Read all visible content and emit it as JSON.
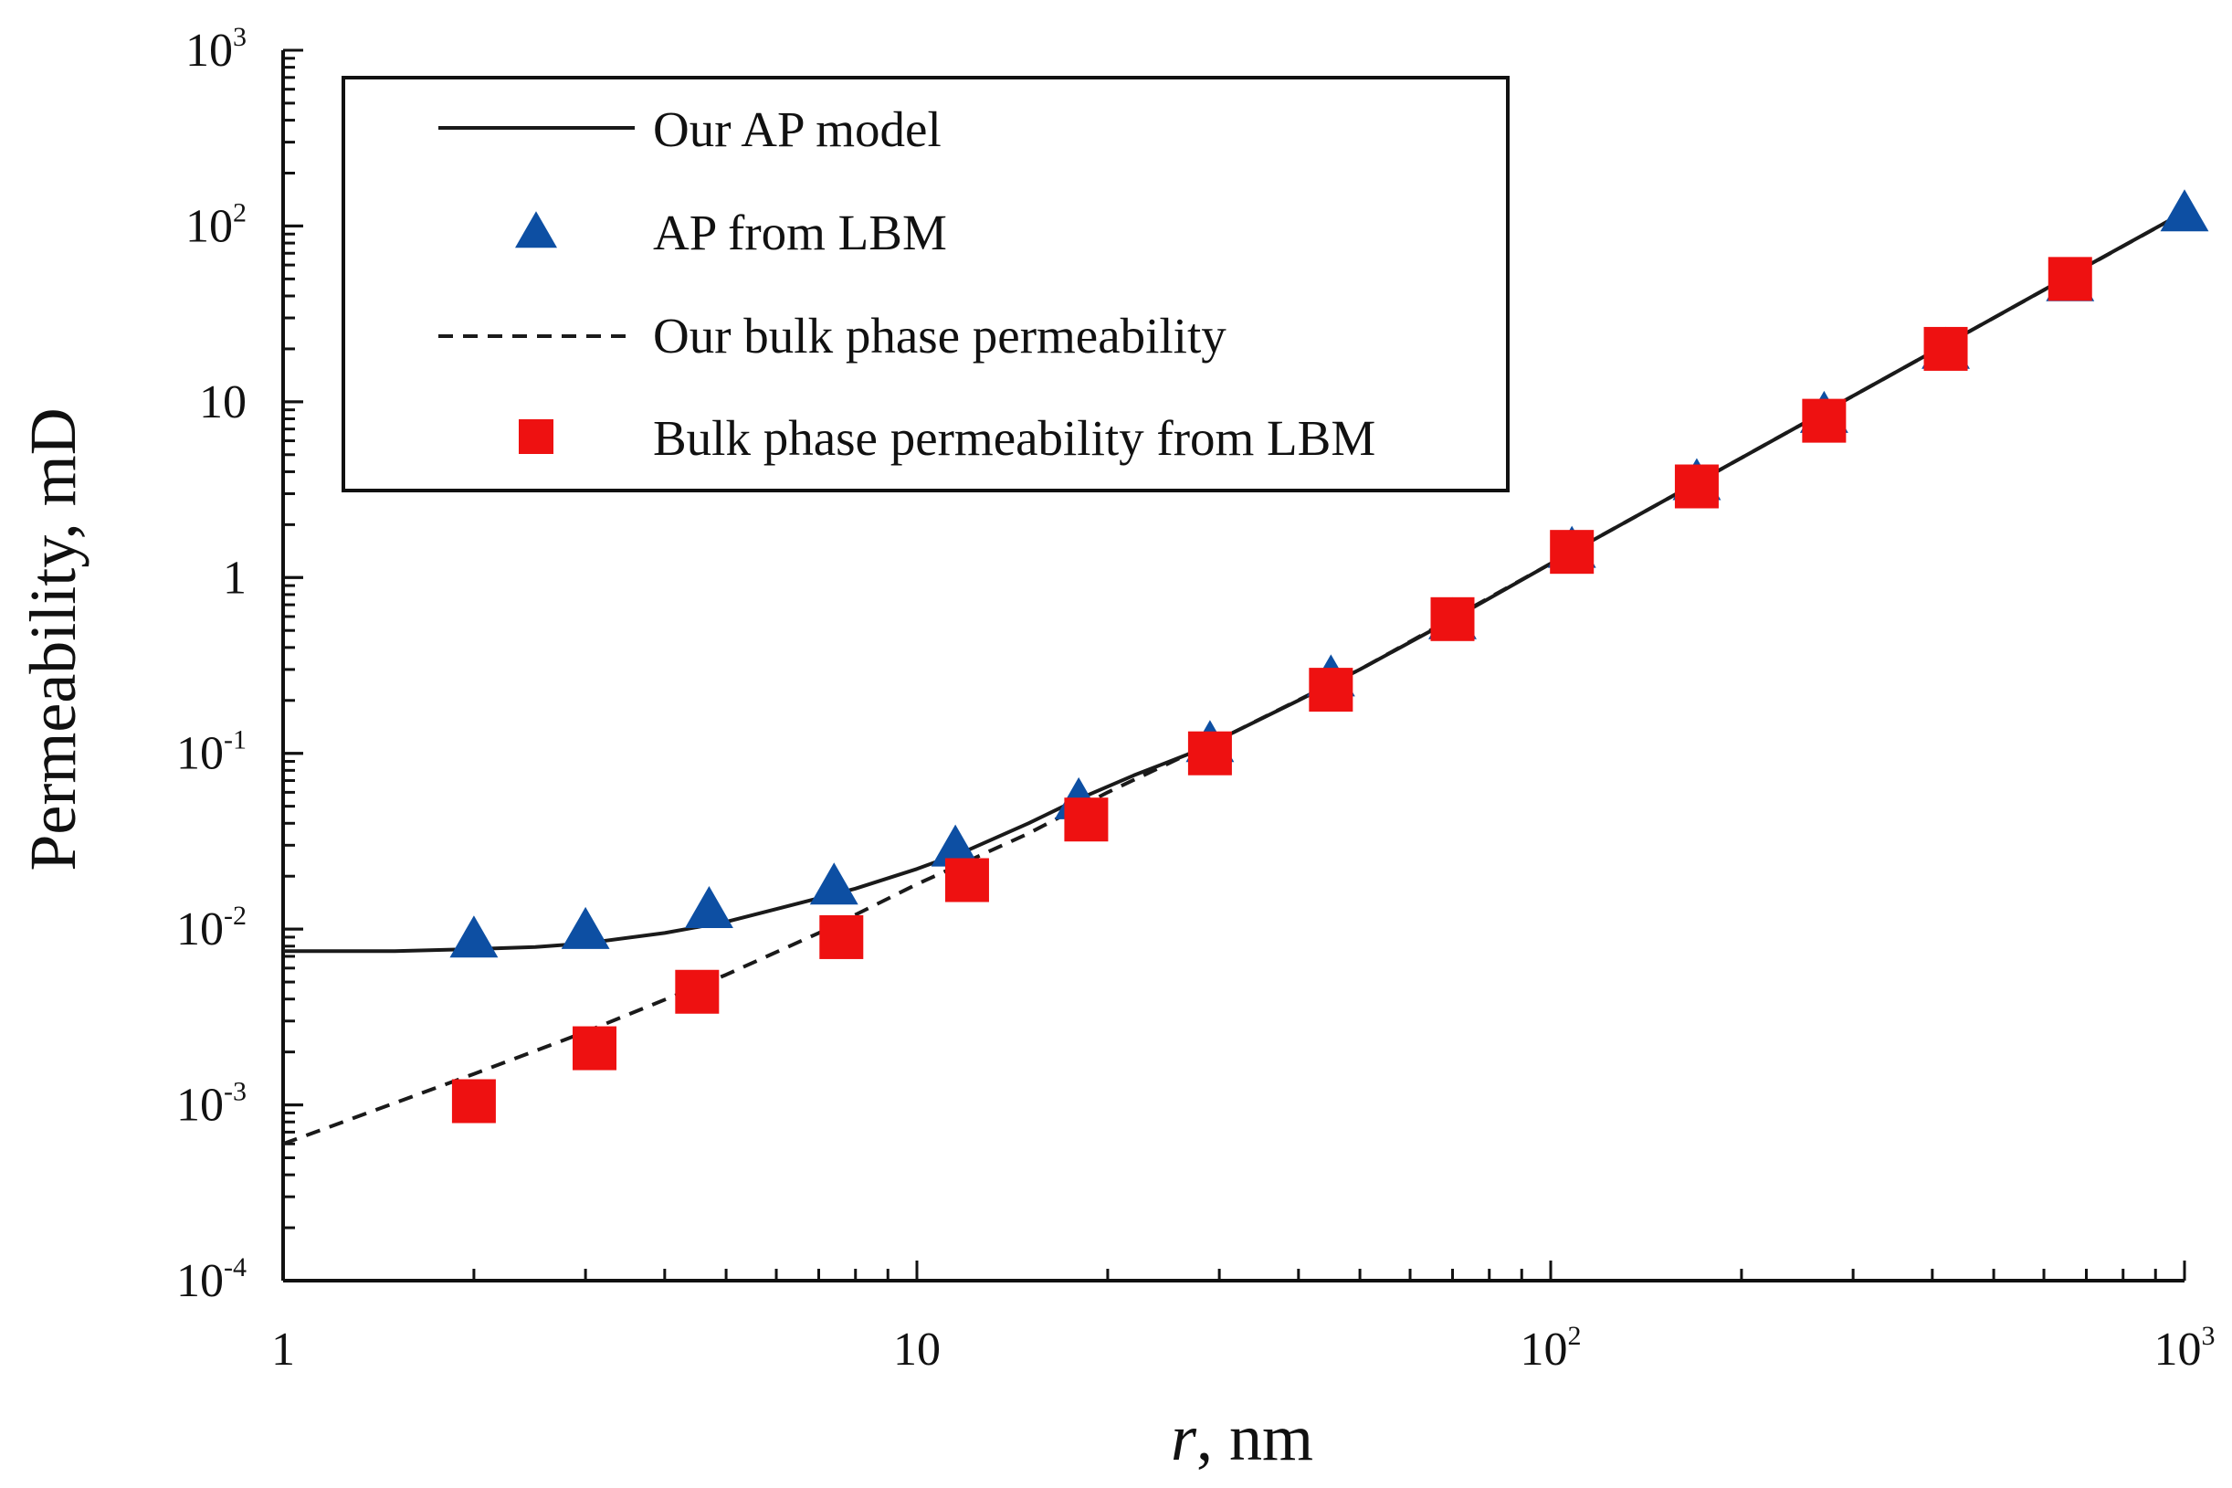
{
  "chart_data": {
    "type": "scatter",
    "x_scale": "log",
    "y_scale": "log",
    "xlabel": {
      "italic": "r",
      "rest": ", nm"
    },
    "ylabel": "Permeability, mD",
    "xlim": [
      1,
      1000
    ],
    "ylim": [
      0.0001,
      1000
    ],
    "x_ticks": [
      {
        "value": 1,
        "base": "1",
        "sup": ""
      },
      {
        "value": 10,
        "base": "10",
        "sup": ""
      },
      {
        "value": 100,
        "base": "10",
        "sup": "2"
      },
      {
        "value": 1000,
        "base": "10",
        "sup": "3"
      }
    ],
    "y_ticks": [
      {
        "value": 0.0001,
        "base": "10",
        "sup": "-4"
      },
      {
        "value": 0.001,
        "base": "10",
        "sup": "-3"
      },
      {
        "value": 0.01,
        "base": "10",
        "sup": "-2"
      },
      {
        "value": 0.1,
        "base": "10",
        "sup": "-1"
      },
      {
        "value": 1,
        "base": "1",
        "sup": ""
      },
      {
        "value": 10,
        "base": "10",
        "sup": ""
      },
      {
        "value": 100,
        "base": "10",
        "sup": "2"
      },
      {
        "value": 1000,
        "base": "10",
        "sup": "3"
      }
    ],
    "legend": {
      "placement": "top-left",
      "entries": [
        "Our AP model",
        "AP from LBM",
        "Our bulk phase permeability",
        "Bulk phase permeability from LBM"
      ]
    },
    "colors": {
      "line": "#1a1a1a",
      "triangle": "#0d4fa3",
      "square": "#ee1111",
      "axis": "#111111"
    },
    "series": [
      {
        "name": "Our AP model",
        "kind": "line-solid",
        "x": [
          1,
          1.5,
          2,
          2.5,
          3,
          4,
          5,
          6,
          7,
          8,
          10,
          12,
          15,
          18,
          22,
          27,
          30,
          40,
          50,
          70,
          100,
          150,
          200,
          300,
          500,
          700,
          1000
        ],
        "y": [
          0.0075,
          0.0075,
          0.0077,
          0.0079,
          0.0083,
          0.0095,
          0.011,
          0.013,
          0.015,
          0.017,
          0.022,
          0.028,
          0.04,
          0.055,
          0.075,
          0.1,
          0.12,
          0.2,
          0.3,
          0.58,
          1.2,
          2.7,
          4.8,
          10.8,
          30,
          59,
          120
        ]
      },
      {
        "name": "AP from LBM",
        "kind": "markers-triangle",
        "x": [
          2,
          3,
          4.7,
          7.4,
          11.5,
          18,
          29,
          45,
          70,
          108,
          170,
          270,
          420,
          660,
          1000
        ],
        "y": [
          0.0085,
          0.0095,
          0.0125,
          0.017,
          0.028,
          0.052,
          0.11,
          0.26,
          0.55,
          1.4,
          3.4,
          8.2,
          19,
          46,
          115
        ]
      },
      {
        "name": "Our bulk phase permeability",
        "kind": "line-dashed",
        "x": [
          1,
          2,
          3,
          5,
          7,
          10,
          15,
          20,
          30,
          50,
          100,
          200,
          500,
          1000
        ],
        "y": [
          0.0006,
          0.0015,
          0.0026,
          0.0055,
          0.0095,
          0.018,
          0.035,
          0.06,
          0.12,
          0.3,
          1.2,
          4.8,
          30,
          120
        ]
      },
      {
        "name": "Bulk phase permeability from LBM",
        "kind": "markers-square",
        "x": [
          2,
          3.1,
          4.5,
          7.6,
          12,
          18.5,
          29,
          45,
          70,
          108,
          170,
          270,
          420,
          660
        ],
        "y": [
          0.00105,
          0.0021,
          0.0044,
          0.009,
          0.019,
          0.042,
          0.1,
          0.23,
          0.58,
          1.4,
          3.3,
          7.8,
          20,
          50
        ]
      }
    ]
  }
}
